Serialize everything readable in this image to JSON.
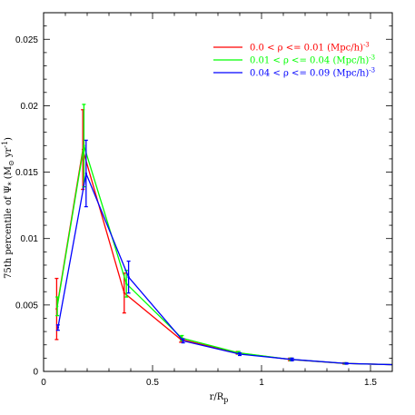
{
  "chart_data": {
    "type": "line",
    "xlabel": "r/R",
    "xlabel_sub": "p",
    "ylabel": "75th percentile of Ψ",
    "ylabel_sub": "*",
    "ylabel_units": " (M",
    "ylabel_units_sub": "⊙",
    "ylabel_units_tail": " yr",
    "ylabel_units_sup": "-1",
    "ylabel_units_close": ")",
    "xlim": [
      0,
      1.6
    ],
    "ylim": [
      0,
      0.027
    ],
    "x_ticks": [
      0,
      0.5,
      1,
      1.5
    ],
    "x_tick_labels": [
      "0",
      "0.5",
      "1",
      "1.5"
    ],
    "y_ticks": [
      0,
      0.005,
      0.01,
      0.015,
      0.02,
      0.025
    ],
    "y_tick_labels": [
      "0",
      "0.005",
      "0.01",
      "0.015",
      "0.02",
      "0.025"
    ],
    "grid": false,
    "legend_position": "top-right",
    "series": [
      {
        "name": "0.0 < ρ <= 0.01 (Mpc/h)",
        "name_sup": "-3",
        "color": "#ff0000",
        "x": [
          0.06,
          0.18,
          0.37,
          0.63,
          0.89,
          1.13,
          1.38,
          1.62
        ],
        "y": [
          0.0047,
          0.0167,
          0.0059,
          0.0024,
          0.0014,
          0.0009,
          0.0006,
          0.0005
        ],
        "err": [
          0.0023,
          0.003,
          0.0015,
          0.0002,
          0.0001,
          0.0001,
          5e-05,
          0.0
        ],
        "marker_size": [
          1,
          1,
          1,
          1,
          1,
          1,
          1,
          1
        ]
      },
      {
        "name": "0.01 < ρ <= 0.04 (Mpc/h)",
        "name_sup": "-3",
        "color": "#00ff00",
        "x": [
          0.063,
          0.185,
          0.38,
          0.635,
          0.895,
          1.135,
          1.385,
          1.62
        ],
        "y": [
          0.0049,
          0.017,
          0.0066,
          0.0025,
          0.0014,
          0.0009,
          0.0006,
          0.0005
        ],
        "err": [
          0.0007,
          0.0031,
          0.001,
          0.0002,
          0.0001,
          0.0001,
          5e-05,
          0.0
        ],
        "marker_size": [
          1,
          1,
          1,
          1,
          1,
          1,
          1,
          1
        ]
      },
      {
        "name": "0.04 < ρ <= 0.09 (Mpc/h)",
        "name_sup": "-3",
        "color": "#0000ff",
        "x": [
          0.066,
          0.195,
          0.39,
          0.64,
          0.9,
          1.14,
          1.39,
          1.62
        ],
        "y": [
          0.0033,
          0.0149,
          0.0071,
          0.0023,
          0.0013,
          0.0009,
          0.0006,
          0.0005
        ],
        "err": [
          0.0002,
          0.0025,
          0.0012,
          0.00015,
          0.0001,
          0.0001,
          5e-05,
          0.0
        ],
        "marker_size": [
          1,
          1,
          1,
          1,
          1,
          1,
          1,
          1
        ]
      }
    ]
  }
}
